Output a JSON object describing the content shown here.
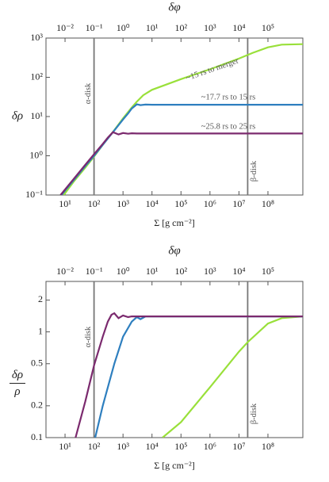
{
  "chart_data": [
    {
      "type": "line",
      "log": true,
      "ylabel": "δρ",
      "xlabel": "Σ [g cm⁻²]",
      "x2label": "δφ",
      "xlim": [
        2.2,
        1600000000
      ],
      "x2lim": [
        0.0022,
        1600000
      ],
      "xticks": [
        {
          "value": 10,
          "label": "10¹"
        },
        {
          "value": 100,
          "label": "10²"
        },
        {
          "value": 1000,
          "label": "10³"
        },
        {
          "value": 10000,
          "label": "10⁴"
        },
        {
          "value": 100000,
          "label": "10⁵"
        },
        {
          "value": 1000000,
          "label": "10⁶"
        },
        {
          "value": 10000000,
          "label": "10⁷"
        },
        {
          "value": 100000000,
          "label": "10⁸"
        }
      ],
      "x2ticks": [
        {
          "value": 0.01,
          "label": "10⁻²"
        },
        {
          "value": 0.1,
          "label": "10⁻¹"
        },
        {
          "value": 1,
          "label": "10⁰"
        },
        {
          "value": 10,
          "label": "10¹"
        },
        {
          "value": 100,
          "label": "10²"
        },
        {
          "value": 1000,
          "label": "10³"
        },
        {
          "value": 10000,
          "label": "10⁴"
        },
        {
          "value": 100000,
          "label": "10⁵"
        }
      ],
      "ylim": [
        0.1,
        1000
      ],
      "yticks": [
        {
          "value": 0.1,
          "label": "10⁻¹"
        },
        {
          "value": 1,
          "label": "10⁰"
        },
        {
          "value": 10,
          "label": "10¹"
        },
        {
          "value": 100,
          "label": "10²"
        },
        {
          "value": 1000,
          "label": "10³"
        }
      ],
      "vlines": [
        {
          "x": 100,
          "label": "α-disk"
        },
        {
          "x": 20000000,
          "label": "β-disk"
        }
      ],
      "annotations": [
        "~15 rs to merger",
        "~17.7 rs to 15 rs",
        "~25.8 rs to 25 rs"
      ],
      "series": [
        {
          "color": "#99e03a",
          "x": [
            9,
            20,
            50,
            100,
            200,
            500,
            1000,
            2000,
            3000,
            5000,
            10000,
            100000,
            1000000,
            10000000,
            30000000,
            100000000,
            300000000,
            1600000000
          ],
          "values": [
            0.1,
            0.22,
            0.5,
            0.95,
            1.9,
            4.5,
            9,
            17,
            24,
            35,
            48,
            90,
            160,
            300,
            420,
            580,
            680,
            700
          ]
        },
        {
          "color": "#2e7fbf",
          "x": [
            7.5,
            10,
            20,
            50,
            100,
            200,
            500,
            1000,
            1500,
            2000,
            3000,
            4000,
            6000,
            10000,
            1600000000
          ],
          "values": [
            0.1,
            0.13,
            0.24,
            0.55,
            1.0,
            1.9,
            4.4,
            8.4,
            12,
            16,
            20.5,
            19.5,
            20.2,
            20,
            20
          ]
        },
        {
          "color": "#7b2a6e",
          "x": [
            7,
            10,
            20,
            50,
            100,
            200,
            300,
            450,
            700,
            1000,
            1500,
            2000,
            3000,
            1600000000
          ],
          "values": [
            0.1,
            0.138,
            0.257,
            0.59,
            1.09,
            2.0,
            2.9,
            4.0,
            3.5,
            3.8,
            3.65,
            3.75,
            3.7,
            3.7
          ]
        }
      ]
    },
    {
      "type": "line",
      "log": true,
      "ylabel": {
        "numerator": "δρ",
        "denominator": "ρ"
      },
      "xlabel": "Σ [g cm⁻²]",
      "x2label": "δφ",
      "xlim": [
        2.2,
        1600000000
      ],
      "x2lim": [
        0.0022,
        1600000
      ],
      "xticks": [
        {
          "value": 10,
          "label": "10¹"
        },
        {
          "value": 100,
          "label": "10²"
        },
        {
          "value": 1000,
          "label": "10³"
        },
        {
          "value": 10000,
          "label": "10⁴"
        },
        {
          "value": 100000,
          "label": "10⁵"
        },
        {
          "value": 1000000,
          "label": "10⁶"
        },
        {
          "value": 10000000,
          "label": "10⁷"
        },
        {
          "value": 100000000,
          "label": "10⁸"
        }
      ],
      "x2ticks": [
        {
          "value": 0.01,
          "label": "10⁻²"
        },
        {
          "value": 0.1,
          "label": "10⁻¹"
        },
        {
          "value": 1,
          "label": "10⁰"
        },
        {
          "value": 10,
          "label": "10¹"
        },
        {
          "value": 100,
          "label": "10²"
        },
        {
          "value": 1000,
          "label": "10³"
        },
        {
          "value": 10000,
          "label": "10⁴"
        },
        {
          "value": 100000,
          "label": "10⁵"
        }
      ],
      "ylim": [
        0.1,
        3
      ],
      "yticks": [
        0.1,
        0.2,
        0.5,
        1,
        2
      ],
      "vlines": [
        {
          "x": 100,
          "label": "α-disk"
        },
        {
          "x": 20000000,
          "label": "β-disk"
        }
      ],
      "series": [
        {
          "color": "#99e03a",
          "x": [
            23000,
            100000,
            1000000,
            10000000,
            20000000,
            100000000,
            300000000,
            1600000000
          ],
          "values": [
            0.1,
            0.14,
            0.3,
            0.65,
            0.8,
            1.2,
            1.35,
            1.4
          ]
        },
        {
          "color": "#2e7fbf",
          "x": [
            110,
            200,
            500,
            1000,
            2000,
            3000,
            4000,
            6000,
            10000,
            1600000000
          ],
          "values": [
            0.1,
            0.2,
            0.5,
            0.9,
            1.25,
            1.38,
            1.32,
            1.4,
            1.4,
            1.4
          ]
        },
        {
          "color": "#7b2a6e",
          "x": [
            23,
            50,
            100,
            200,
            300,
            400,
            500,
            700,
            1000,
            1500,
            2000,
            1600000000
          ],
          "values": [
            0.1,
            0.22,
            0.48,
            0.9,
            1.25,
            1.45,
            1.5,
            1.35,
            1.43,
            1.38,
            1.4,
            1.4
          ]
        }
      ]
    }
  ]
}
